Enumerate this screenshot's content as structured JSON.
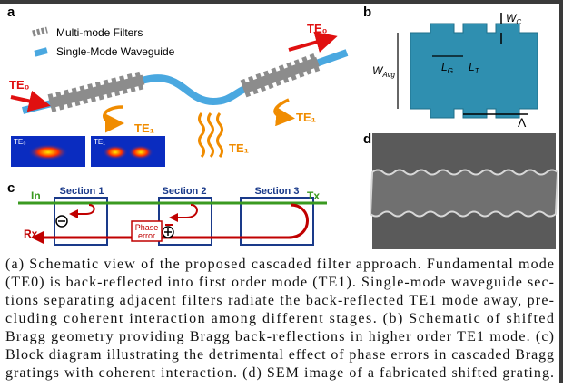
{
  "figure": {
    "panel_a": {
      "label": "a",
      "legend": [
        "Multi-mode Filters",
        "Single-Mode Waveguide"
      ],
      "te_in": "TE₀",
      "te_out": "TE₀",
      "te1_left": "TE₁",
      "te1_middle": "TE₁",
      "te1_right": "TE₁",
      "inset_te0": "TE₀",
      "inset_te1": "TE₁"
    },
    "panel_b": {
      "label": "b",
      "wc": {
        "symbol": "W",
        "sub": "C"
      },
      "wavg": {
        "symbol": "W",
        "sub": "Avg"
      },
      "lg": {
        "symbol": "L",
        "sub": "G"
      },
      "lt": {
        "symbol": "L",
        "sub": "T"
      },
      "period": "Λ"
    },
    "panel_c": {
      "label": "c",
      "input": "In",
      "output": "Tx",
      "reflected": "Rx",
      "sections": [
        "Section 1",
        "Section 2",
        "Section 3"
      ],
      "phase_error": [
        "Phase",
        "error"
      ]
    },
    "panel_d": {
      "label": "d"
    },
    "caption": {
      "lines": [
        "(a) Schematic view of the proposed cascaded filter approach. Fundamental mode",
        "(TE0) is back-reflected into first order mode (TE1). Single-mode waveguide sec-",
        "tions separating adjacent filters radiate the back-reflected TE1 mode away, pre-",
        "cluding coherent interaction among different stages. (b) Schematic of shifted",
        "Bragg geometry providing Bragg back-reflections in higher order TE1 mode. (c)",
        "Block diagram illustrating the detrimental effect of phase errors in cascaded Bragg",
        "gratings with coherent interaction. (d) SEM image of a fabricated shifted grating."
      ]
    }
  }
}
